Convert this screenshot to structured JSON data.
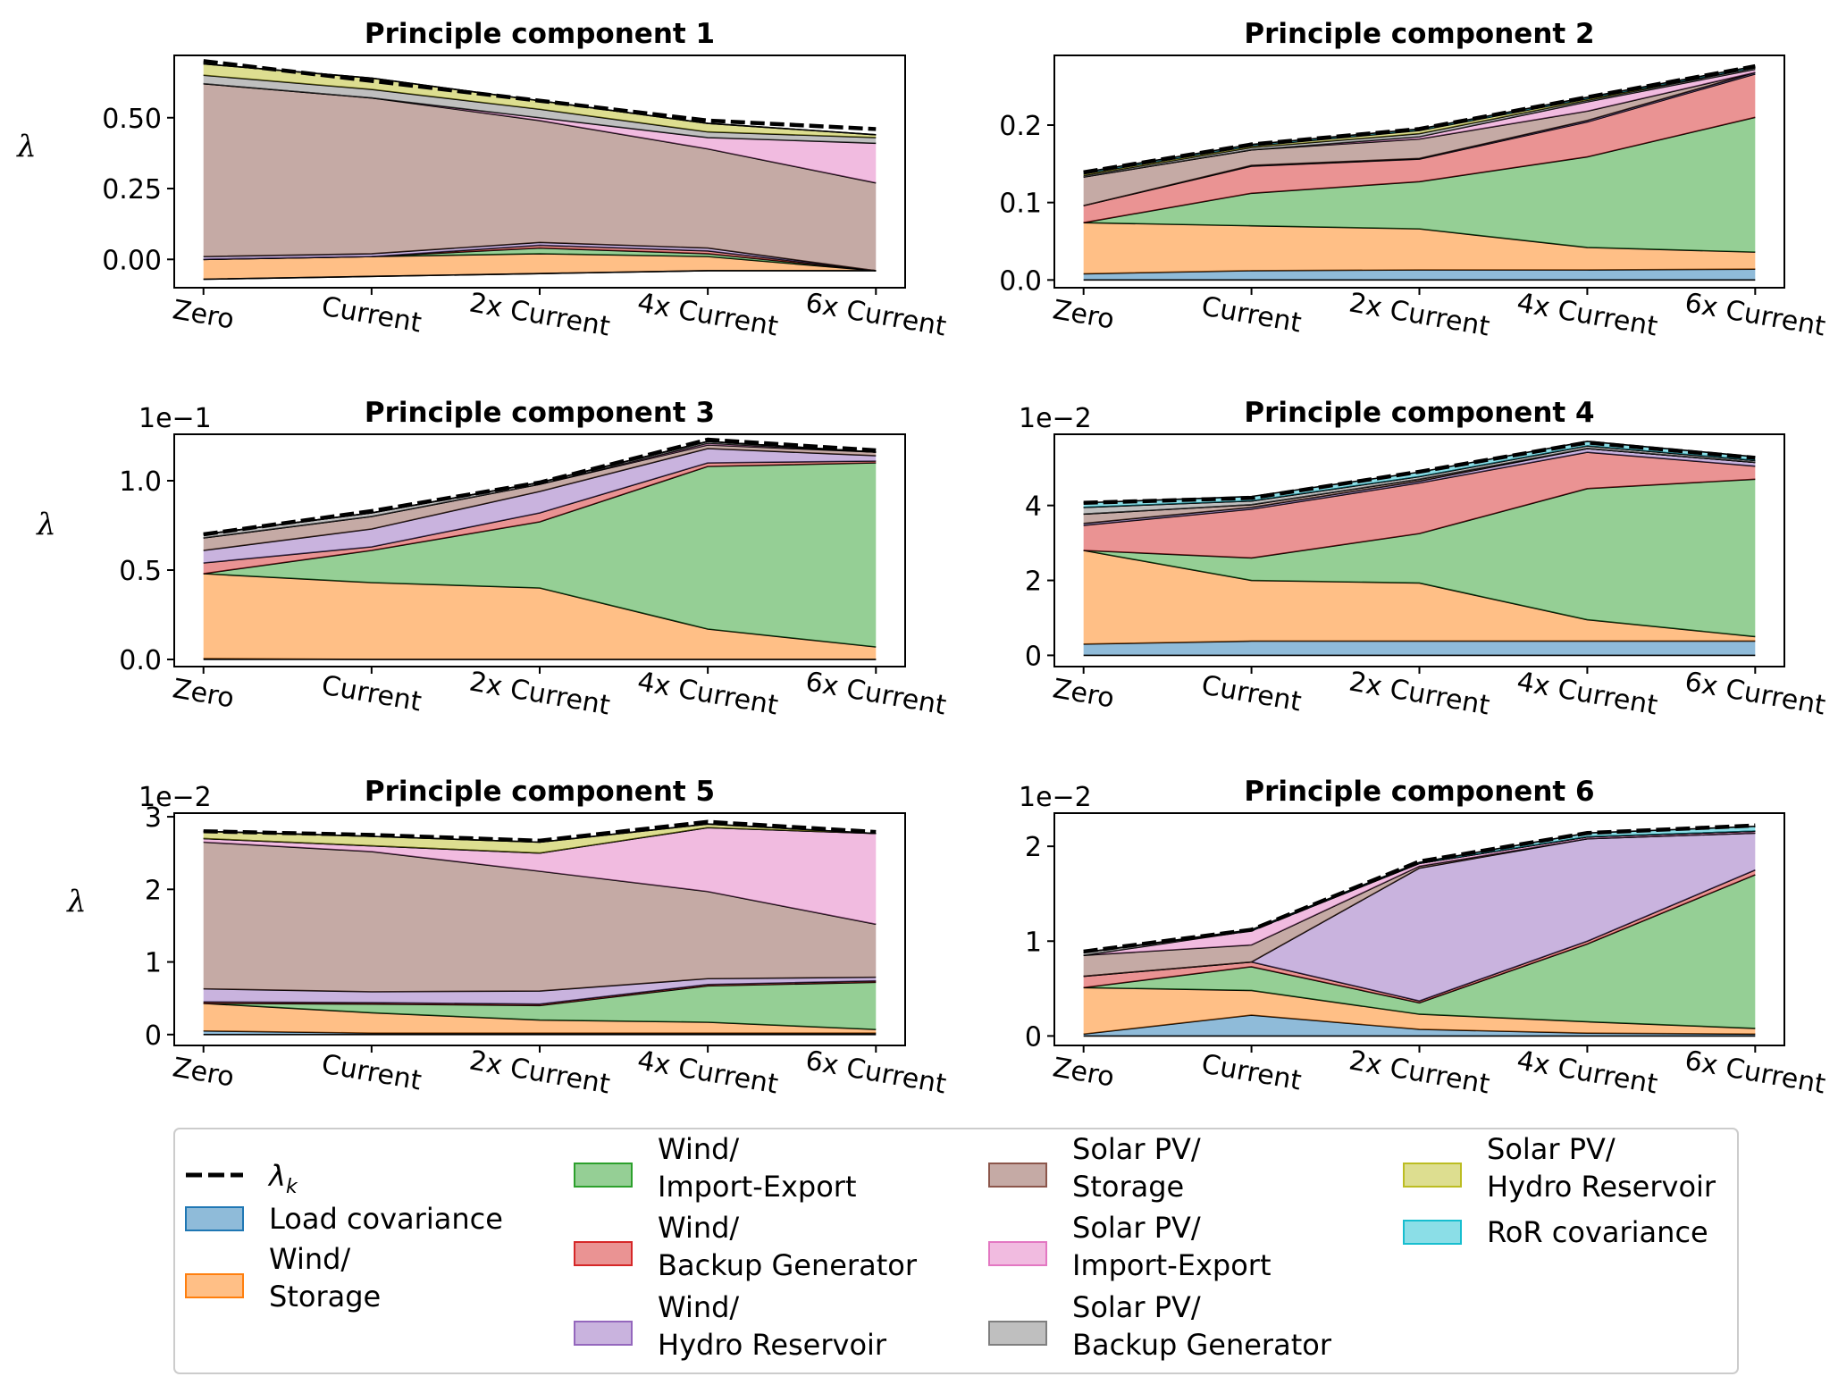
{
  "colors": {
    "Load covariance": "#1f77b4",
    "Wind/Storage": "#ff7f0e",
    "Wind/Import-Export": "#2ca02c",
    "Wind/Backup Generator": "#d62728",
    "Wind/Hydro Reservoir": "#9467bd",
    "Solar PV/Storage": "#8c564b",
    "Solar PV/Import-Export": "#e377c2",
    "Solar PV/Backup Generator": "#7f7f7f",
    "Solar PV/Hydro Reservoir": "#bcbd22",
    "RoR covariance": "#17becf"
  },
  "legend": {
    "lambda_label": "λ",
    "lambda_sub": "k",
    "entries": [
      {
        "key": "Load covariance",
        "lines": [
          "Load covariance"
        ]
      },
      {
        "key": "Wind/Storage",
        "lines": [
          "Wind/",
          "Storage"
        ]
      },
      {
        "key": "Wind/Import-Export",
        "lines": [
          "Wind/",
          "Import-Export"
        ]
      },
      {
        "key": "Wind/Backup Generator",
        "lines": [
          "Wind/",
          "Backup Generator"
        ]
      },
      {
        "key": "Wind/Hydro Reservoir",
        "lines": [
          "Wind/",
          "Hydro Reservoir"
        ]
      },
      {
        "key": "Solar PV/Storage",
        "lines": [
          "Solar PV/",
          "Storage"
        ]
      },
      {
        "key": "Solar PV/Import-Export",
        "lines": [
          "Solar PV/",
          "Import-Export"
        ]
      },
      {
        "key": "Solar PV/Backup Generator",
        "lines": [
          "Solar PV/",
          "Backup Generator"
        ]
      },
      {
        "key": "Solar PV/Hydro Reservoir",
        "lines": [
          "Solar PV/",
          "Hydro Reservoir"
        ]
      },
      {
        "key": "RoR covariance",
        "lines": [
          "RoR covariance"
        ]
      }
    ]
  },
  "chart_data": [
    {
      "type": "area",
      "title": "Principle component 1",
      "ylabel": "λ",
      "offset_label": "",
      "categories": [
        "Zero",
        "Current",
        "2x Current",
        "4x Current",
        "6x Current"
      ],
      "ylim": [
        -0.1,
        0.72
      ],
      "yticks": [
        0.0,
        0.25,
        0.5
      ],
      "ytick_labels": [
        "0.00",
        "0.25",
        "0.50"
      ],
      "baseline": [
        -0.07,
        -0.06,
        -0.05,
        -0.04,
        -0.04
      ],
      "series": [
        {
          "key": "Load covariance",
          "values": [
            0.0,
            0.0,
            0.0,
            0.0,
            0.0
          ]
        },
        {
          "key": "Wind/Storage",
          "values": [
            0.07,
            0.07,
            0.07,
            0.05,
            0.0
          ]
        },
        {
          "key": "Wind/Import-Export",
          "values": [
            0.0,
            0.0,
            0.02,
            0.01,
            0.0
          ]
        },
        {
          "key": "Wind/Backup Generator",
          "values": [
            0.0,
            0.0,
            0.01,
            0.01,
            0.0
          ]
        },
        {
          "key": "Wind/Hydro Reservoir",
          "values": [
            0.01,
            0.01,
            0.01,
            0.01,
            0.0
          ]
        },
        {
          "key": "Solar PV/Storage",
          "values": [
            0.61,
            0.55,
            0.43,
            0.35,
            0.31
          ]
        },
        {
          "key": "Solar PV/Import-Export",
          "values": [
            0.0,
            0.0,
            0.01,
            0.04,
            0.14
          ]
        },
        {
          "key": "Solar PV/Backup Generator",
          "values": [
            0.03,
            0.03,
            0.03,
            0.02,
            0.02
          ]
        },
        {
          "key": "Solar PV/Hydro Reservoir",
          "values": [
            0.04,
            0.04,
            0.03,
            0.03,
            0.01
          ]
        },
        {
          "key": "RoR covariance",
          "values": [
            0.0,
            0.0,
            0.0,
            0.0,
            0.0
          ]
        }
      ],
      "lambda_k": [
        0.7,
        0.63,
        0.56,
        0.49,
        0.46
      ]
    },
    {
      "type": "area",
      "title": "Principle component 2",
      "ylabel": "",
      "offset_label": "",
      "categories": [
        "Zero",
        "Current",
        "2x Current",
        "4x Current",
        "6x Current"
      ],
      "ylim": [
        -0.01,
        0.29
      ],
      "yticks": [
        0.0,
        0.1,
        0.2
      ],
      "ytick_labels": [
        "0.0",
        "0.1",
        "0.2"
      ],
      "baseline": [
        0,
        0,
        0,
        0,
        0
      ],
      "series": [
        {
          "key": "Load covariance",
          "values": [
            0.008,
            0.012,
            0.013,
            0.013,
            0.014
          ]
        },
        {
          "key": "Wind/Storage",
          "values": [
            0.066,
            0.058,
            0.053,
            0.029,
            0.022
          ]
        },
        {
          "key": "Wind/Import-Export",
          "values": [
            0.0,
            0.042,
            0.061,
            0.117,
            0.174
          ]
        },
        {
          "key": "Wind/Backup Generator",
          "values": [
            0.022,
            0.035,
            0.029,
            0.045,
            0.056
          ]
        },
        {
          "key": "Wind/Hydro Reservoir",
          "values": [
            0.0,
            0.001,
            0.001,
            0.002,
            0.002
          ]
        },
        {
          "key": "Solar PV/Storage",
          "values": [
            0.037,
            0.02,
            0.025,
            0.012,
            0.0
          ]
        },
        {
          "key": "Solar PV/Import-Export",
          "values": [
            0.0,
            0.0,
            0.003,
            0.012,
            0.004
          ]
        },
        {
          "key": "Solar PV/Backup Generator",
          "values": [
            0.002,
            0.003,
            0.004,
            0.002,
            0.002
          ]
        },
        {
          "key": "Solar PV/Hydro Reservoir",
          "values": [
            0.002,
            0.002,
            0.004,
            0.002,
            0.0
          ]
        },
        {
          "key": "RoR covariance",
          "values": [
            0.002,
            0.002,
            0.002,
            0.002,
            0.002
          ]
        }
      ],
      "lambda_k": [
        0.139,
        0.175,
        0.195,
        0.236,
        0.276
      ]
    },
    {
      "type": "area",
      "title": "Principle component 3",
      "ylabel": "λ",
      "offset_label": "1e−1",
      "categories": [
        "Zero",
        "Current",
        "2x Current",
        "4x Current",
        "6x Current"
      ],
      "ylim": [
        -0.04,
        1.26
      ],
      "yticks": [
        0.0,
        0.5,
        1.0
      ],
      "ytick_labels": [
        "0.0",
        "0.5",
        "1.0"
      ],
      "baseline": [
        0,
        0,
        0,
        0,
        0
      ],
      "series": [
        {
          "key": "Load covariance",
          "values": [
            0.005,
            0.0,
            0.0,
            0.0,
            0.0
          ]
        },
        {
          "key": "Wind/Storage",
          "values": [
            0.475,
            0.43,
            0.4,
            0.17,
            0.07
          ]
        },
        {
          "key": "Wind/Import-Export",
          "values": [
            0.0,
            0.18,
            0.37,
            0.91,
            1.03
          ]
        },
        {
          "key": "Wind/Backup Generator",
          "values": [
            0.06,
            0.02,
            0.05,
            0.02,
            0.01
          ]
        },
        {
          "key": "Wind/Hydro Reservoir",
          "values": [
            0.07,
            0.1,
            0.12,
            0.08,
            0.03
          ]
        },
        {
          "key": "Solar PV/Storage",
          "values": [
            0.07,
            0.07,
            0.04,
            0.02,
            0.02
          ]
        },
        {
          "key": "Solar PV/Import-Export",
          "values": [
            0.0,
            0.0,
            0.0,
            0.01,
            0.0
          ]
        },
        {
          "key": "Solar PV/Backup Generator",
          "values": [
            0.02,
            0.02,
            0.01,
            0.01,
            0.0
          ]
        },
        {
          "key": "Solar PV/Hydro Reservoir",
          "values": [
            0.0,
            0.0,
            0.0,
            0.0,
            0.0
          ]
        },
        {
          "key": "RoR covariance",
          "values": [
            0.0,
            0.0,
            0.0,
            0.0,
            0.0
          ]
        }
      ],
      "lambda_k": [
        0.7,
        0.83,
        0.99,
        1.23,
        1.17
      ]
    },
    {
      "type": "area",
      "title": "Principle component 4",
      "ylabel": "",
      "offset_label": "1e−2",
      "categories": [
        "Zero",
        "Current",
        "2x Current",
        "4x Current",
        "6x Current"
      ],
      "ylim": [
        -0.3,
        5.9
      ],
      "yticks": [
        0,
        2,
        4
      ],
      "ytick_labels": [
        "0",
        "2",
        "4"
      ],
      "baseline": [
        0,
        0,
        0,
        0,
        0
      ],
      "series": [
        {
          "key": "Load covariance",
          "values": [
            0.3,
            0.38,
            0.38,
            0.38,
            0.38
          ]
        },
        {
          "key": "Wind/Storage",
          "values": [
            2.5,
            1.62,
            1.55,
            0.57,
            0.12
          ]
        },
        {
          "key": "Wind/Import-Export",
          "values": [
            0.0,
            0.6,
            1.32,
            3.5,
            4.2
          ]
        },
        {
          "key": "Wind/Backup Generator",
          "values": [
            0.67,
            1.3,
            1.35,
            0.97,
            0.35
          ]
        },
        {
          "key": "Wind/Hydro Reservoir",
          "values": [
            0.05,
            0.05,
            0.05,
            0.1,
            0.1
          ]
        },
        {
          "key": "Solar PV/Storage",
          "values": [
            0.25,
            0.07,
            0.05,
            0.0,
            0.0
          ]
        },
        {
          "key": "Solar PV/Import-Export",
          "values": [
            0.0,
            0.0,
            0.0,
            0.0,
            0.0
          ]
        },
        {
          "key": "Solar PV/Backup Generator",
          "values": [
            0.18,
            0.1,
            0.07,
            0.07,
            0.05
          ]
        },
        {
          "key": "Solar PV/Hydro Reservoir",
          "values": [
            0.0,
            0.0,
            0.0,
            0.0,
            0.0
          ]
        },
        {
          "key": "RoR covariance",
          "values": [
            0.12,
            0.12,
            0.12,
            0.12,
            0.1
          ]
        }
      ],
      "lambda_k": [
        4.07,
        4.2,
        4.9,
        5.68,
        5.27
      ]
    },
    {
      "type": "area",
      "title": "Principle component 5",
      "ylabel": "λ",
      "offset_label": "1e−2",
      "categories": [
        "Zero",
        "Current",
        "2x Current",
        "4x Current",
        "6x Current"
      ],
      "ylim": [
        -0.15,
        3.05
      ],
      "yticks": [
        0,
        1,
        2,
        3
      ],
      "ytick_labels": [
        "0",
        "1",
        "2",
        "3"
      ],
      "baseline": [
        0,
        0,
        0,
        0,
        0
      ],
      "series": [
        {
          "key": "Load covariance",
          "values": [
            0.05,
            0.02,
            0.02,
            0.02,
            0.02
          ]
        },
        {
          "key": "Wind/Storage",
          "values": [
            0.38,
            0.28,
            0.18,
            0.15,
            0.05
          ]
        },
        {
          "key": "Wind/Import-Export",
          "values": [
            0.0,
            0.12,
            0.2,
            0.5,
            0.65
          ]
        },
        {
          "key": "Wind/Backup Generator",
          "values": [
            0.02,
            0.02,
            0.02,
            0.02,
            0.02
          ]
        },
        {
          "key": "Wind/Hydro Reservoir",
          "values": [
            0.18,
            0.15,
            0.18,
            0.08,
            0.05
          ]
        },
        {
          "key": "Solar PV/Storage",
          "values": [
            2.02,
            1.93,
            1.65,
            1.2,
            0.73
          ]
        },
        {
          "key": "Solar PV/Import-Export",
          "values": [
            0.05,
            0.08,
            0.25,
            0.88,
            1.25
          ]
        },
        {
          "key": "Solar PV/Backup Generator",
          "values": [
            0.0,
            0.0,
            0.0,
            0.0,
            0.0
          ]
        },
        {
          "key": "Solar PV/Hydro Reservoir",
          "values": [
            0.1,
            0.13,
            0.15,
            0.05,
            0.0
          ]
        },
        {
          "key": "RoR covariance",
          "values": [
            0.0,
            0.0,
            0.0,
            0.0,
            0.0
          ]
        }
      ],
      "lambda_k": [
        2.8,
        2.75,
        2.67,
        2.93,
        2.79
      ]
    },
    {
      "type": "area",
      "title": "Principle component 6",
      "ylabel": "",
      "offset_label": "1e−2",
      "categories": [
        "Zero",
        "Current",
        "2x Current",
        "4x Current",
        "6x Current"
      ],
      "ylim": [
        -0.1,
        2.35
      ],
      "yticks": [
        0,
        1,
        2
      ],
      "ytick_labels": [
        "0",
        "1",
        "2"
      ],
      "baseline": [
        0,
        0,
        0,
        0,
        0
      ],
      "series": [
        {
          "key": "Load covariance",
          "values": [
            0.02,
            0.22,
            0.07,
            0.03,
            0.02
          ]
        },
        {
          "key": "Wind/Storage",
          "values": [
            0.49,
            0.26,
            0.16,
            0.12,
            0.06
          ]
        },
        {
          "key": "Wind/Import-Export",
          "values": [
            0.0,
            0.25,
            0.12,
            0.82,
            1.62
          ]
        },
        {
          "key": "Wind/Backup Generator",
          "values": [
            0.12,
            0.05,
            0.02,
            0.03,
            0.05
          ]
        },
        {
          "key": "Wind/Hydro Reservoir",
          "values": [
            0.0,
            0.0,
            1.4,
            1.08,
            0.39
          ]
        },
        {
          "key": "Solar PV/Storage",
          "values": [
            0.22,
            0.18,
            0.02,
            0.0,
            0.0
          ]
        },
        {
          "key": "Solar PV/Import-Export",
          "values": [
            0.0,
            0.15,
            0.03,
            0.02,
            0.02
          ]
        },
        {
          "key": "Solar PV/Backup Generator",
          "values": [
            0.03,
            0.0,
            0.0,
            0.0,
            0.0
          ]
        },
        {
          "key": "Solar PV/Hydro Reservoir",
          "values": [
            0.0,
            0.0,
            0.0,
            0.0,
            0.0
          ]
        },
        {
          "key": "RoR covariance",
          "values": [
            0.0,
            0.01,
            0.01,
            0.04,
            0.05
          ]
        }
      ],
      "lambda_k": [
        0.89,
        1.12,
        1.84,
        2.14,
        2.22
      ]
    }
  ]
}
